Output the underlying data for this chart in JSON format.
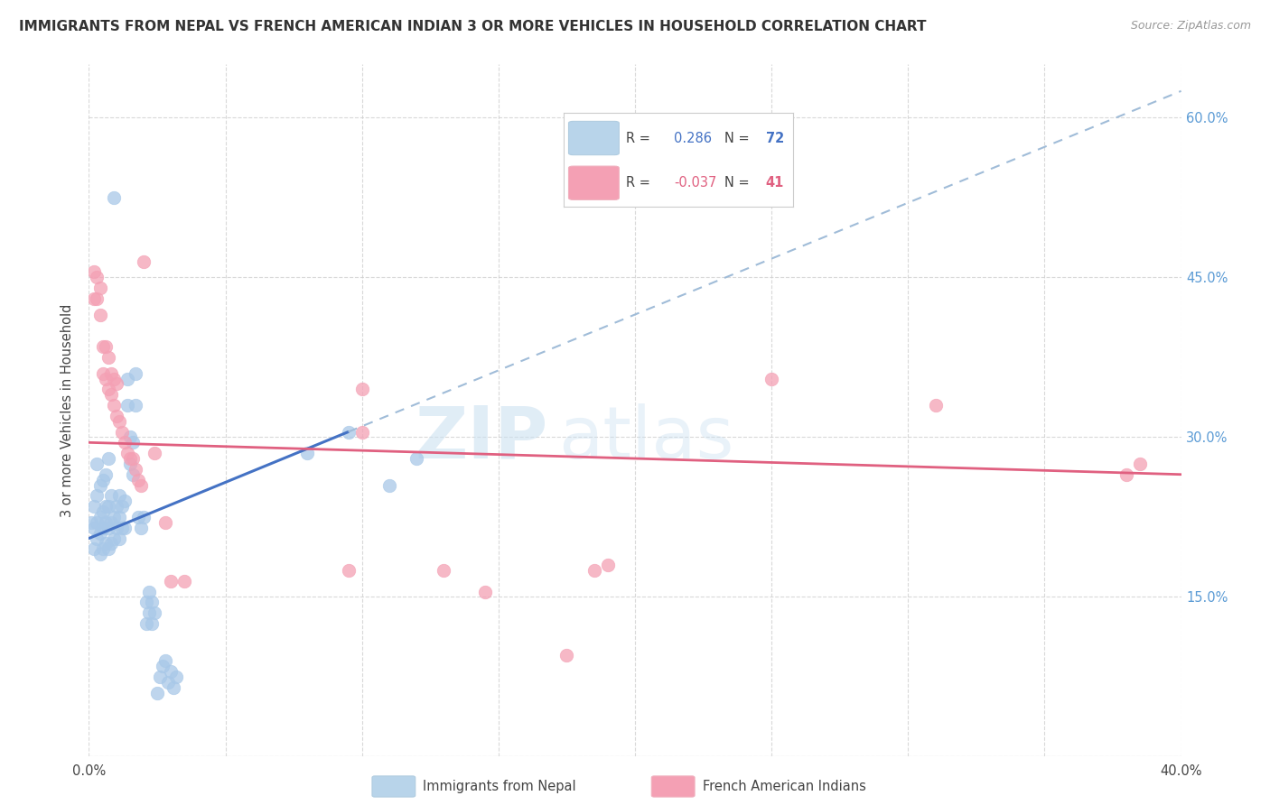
{
  "title": "IMMIGRANTS FROM NEPAL VS FRENCH AMERICAN INDIAN 3 OR MORE VEHICLES IN HOUSEHOLD CORRELATION CHART",
  "source": "Source: ZipAtlas.com",
  "ylabel": "3 or more Vehicles in Household",
  "xlim": [
    0.0,
    0.4
  ],
  "ylim": [
    0.0,
    0.65
  ],
  "legend_label1": "Immigrants from Nepal",
  "legend_label2": "French American Indians",
  "color_blue": "#a8c8e8",
  "color_pink": "#f4a0b4",
  "watermark_zip": "ZIP",
  "watermark_atlas": "atlas",
  "nepal_points": [
    [
      0.001,
      0.22
    ],
    [
      0.002,
      0.195
    ],
    [
      0.002,
      0.215
    ],
    [
      0.002,
      0.235
    ],
    [
      0.003,
      0.205
    ],
    [
      0.003,
      0.22
    ],
    [
      0.003,
      0.245
    ],
    [
      0.003,
      0.275
    ],
    [
      0.004,
      0.19
    ],
    [
      0.004,
      0.21
    ],
    [
      0.004,
      0.225
    ],
    [
      0.004,
      0.255
    ],
    [
      0.005,
      0.195
    ],
    [
      0.005,
      0.215
    ],
    [
      0.005,
      0.23
    ],
    [
      0.005,
      0.26
    ],
    [
      0.006,
      0.2
    ],
    [
      0.006,
      0.22
    ],
    [
      0.006,
      0.235
    ],
    [
      0.006,
      0.265
    ],
    [
      0.007,
      0.195
    ],
    [
      0.007,
      0.215
    ],
    [
      0.007,
      0.235
    ],
    [
      0.007,
      0.28
    ],
    [
      0.008,
      0.2
    ],
    [
      0.008,
      0.22
    ],
    [
      0.008,
      0.245
    ],
    [
      0.009,
      0.205
    ],
    [
      0.009,
      0.225
    ],
    [
      0.01,
      0.215
    ],
    [
      0.01,
      0.235
    ],
    [
      0.011,
      0.205
    ],
    [
      0.011,
      0.225
    ],
    [
      0.011,
      0.245
    ],
    [
      0.012,
      0.215
    ],
    [
      0.012,
      0.235
    ],
    [
      0.013,
      0.215
    ],
    [
      0.013,
      0.24
    ],
    [
      0.014,
      0.33
    ],
    [
      0.014,
      0.355
    ],
    [
      0.015,
      0.275
    ],
    [
      0.015,
      0.3
    ],
    [
      0.016,
      0.265
    ],
    [
      0.016,
      0.295
    ],
    [
      0.017,
      0.33
    ],
    [
      0.017,
      0.36
    ],
    [
      0.018,
      0.225
    ],
    [
      0.019,
      0.215
    ],
    [
      0.02,
      0.225
    ],
    [
      0.021,
      0.125
    ],
    [
      0.021,
      0.145
    ],
    [
      0.022,
      0.135
    ],
    [
      0.022,
      0.155
    ],
    [
      0.023,
      0.125
    ],
    [
      0.023,
      0.145
    ],
    [
      0.024,
      0.135
    ],
    [
      0.025,
      0.06
    ],
    [
      0.026,
      0.075
    ],
    [
      0.027,
      0.085
    ],
    [
      0.028,
      0.09
    ],
    [
      0.029,
      0.07
    ],
    [
      0.03,
      0.08
    ],
    [
      0.031,
      0.065
    ],
    [
      0.032,
      0.075
    ],
    [
      0.009,
      0.525
    ],
    [
      0.08,
      0.285
    ],
    [
      0.095,
      0.305
    ],
    [
      0.11,
      0.255
    ],
    [
      0.12,
      0.28
    ]
  ],
  "french_points": [
    [
      0.002,
      0.43
    ],
    [
      0.002,
      0.455
    ],
    [
      0.003,
      0.43
    ],
    [
      0.003,
      0.45
    ],
    [
      0.004,
      0.415
    ],
    [
      0.004,
      0.44
    ],
    [
      0.005,
      0.36
    ],
    [
      0.005,
      0.385
    ],
    [
      0.006,
      0.355
    ],
    [
      0.006,
      0.385
    ],
    [
      0.007,
      0.345
    ],
    [
      0.007,
      0.375
    ],
    [
      0.008,
      0.34
    ],
    [
      0.008,
      0.36
    ],
    [
      0.009,
      0.33
    ],
    [
      0.009,
      0.355
    ],
    [
      0.01,
      0.32
    ],
    [
      0.01,
      0.35
    ],
    [
      0.011,
      0.315
    ],
    [
      0.012,
      0.305
    ],
    [
      0.013,
      0.295
    ],
    [
      0.014,
      0.285
    ],
    [
      0.015,
      0.28
    ],
    [
      0.016,
      0.28
    ],
    [
      0.017,
      0.27
    ],
    [
      0.018,
      0.26
    ],
    [
      0.019,
      0.255
    ],
    [
      0.02,
      0.465
    ],
    [
      0.024,
      0.285
    ],
    [
      0.028,
      0.22
    ],
    [
      0.03,
      0.165
    ],
    [
      0.035,
      0.165
    ],
    [
      0.1,
      0.305
    ],
    [
      0.1,
      0.345
    ],
    [
      0.13,
      0.175
    ],
    [
      0.145,
      0.155
    ],
    [
      0.175,
      0.095
    ],
    [
      0.25,
      0.355
    ],
    [
      0.31,
      0.33
    ],
    [
      0.38,
      0.265
    ],
    [
      0.385,
      0.275
    ],
    [
      0.095,
      0.175
    ],
    [
      0.185,
      0.175
    ],
    [
      0.19,
      0.18
    ]
  ],
  "blue_line_solid": {
    "x0": 0.0,
    "y0": 0.205,
    "x1": 0.095,
    "y1": 0.305
  },
  "blue_line_dashed": {
    "x0": 0.095,
    "y0": 0.305,
    "x1": 0.4,
    "y1": 0.625
  },
  "pink_line": {
    "x0": 0.0,
    "y0": 0.295,
    "x1": 0.4,
    "y1": 0.265
  }
}
